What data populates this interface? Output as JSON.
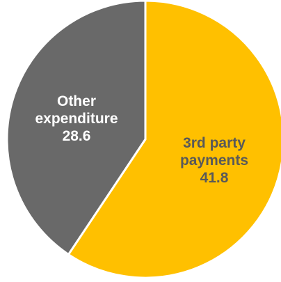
{
  "chart_data": {
    "type": "pie",
    "title": "",
    "legend": "none",
    "slices": [
      {
        "label_lines": [
          "3rd party",
          "payments"
        ],
        "value": 41.8,
        "value_text": "41.8",
        "color": "#FFC000",
        "label_color": "#595959"
      },
      {
        "label_lines": [
          "Other",
          "expenditure"
        ],
        "value": 28.6,
        "value_text": "28.6",
        "color": "#696969",
        "label_color": "#FFFFFF"
      }
    ],
    "separator_color": "#FFFFFF"
  }
}
